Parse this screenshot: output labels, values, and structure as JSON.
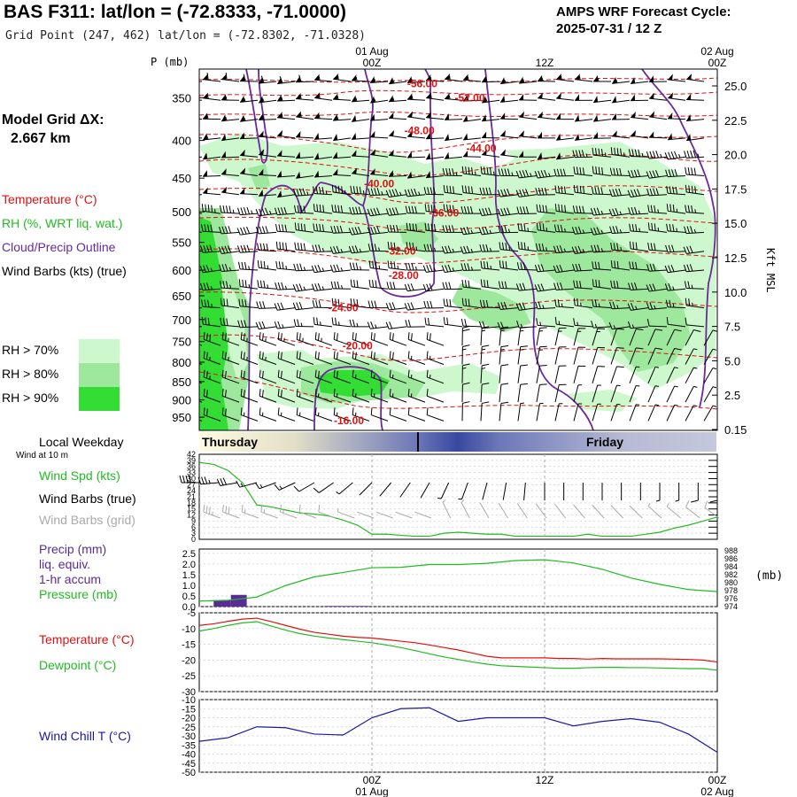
{
  "header": {
    "title": "BAS F311:  lat/lon = (-72.8333, -71.0000)",
    "subtitle": "Grid Point (247, 462) lat/lon = (-72.8302, -71.0328)",
    "cycle_line1": "AMPS WRF Forecast Cycle:",
    "cycle_line2": "2025-07-31 / 12  Z"
  },
  "labels": {
    "p_axis": "P (mb)",
    "model_grid": "Model Grid ΔX:",
    "grid_dx": "2.667 km",
    "temperature": "Temperature (°C)",
    "rh": "RH (%, WRT liq. wat.)",
    "cloud": "Cloud/Precip Outline",
    "wind_barbs": "Wind Barbs (kts) (true)",
    "rh70": "RH > 70%",
    "rh80": "RH > 80%",
    "rh90": "RH > 90%",
    "kft": "Kft MSL",
    "local_weekday": "Local Weekday",
    "wind_10m": "Wind at 10 m",
    "wind_spd": "Wind Spd (kts)",
    "wind_barbs_true": "Wind Barbs (true)",
    "wind_barbs_grid": "Wind Barbs (grid)",
    "precip1": "Precip (mm)",
    "precip2": "liq. equiv.",
    "precip3": "1-hr accum",
    "pressure": "Pressure (mb)",
    "pressure_unit": "(mb)",
    "temp2": "Temperature (°C)",
    "dewpoint": "Dewpoint (°C)",
    "windchill": "Wind Chill T (°C)",
    "day1": "Thursday",
    "day2": "Friday"
  },
  "colors": {
    "temperature": "#e01010",
    "rh": "#22bb22",
    "cloud": "#6a2a9a",
    "grid_barbs": "#aaaaaa",
    "precip": "#5a2a9a",
    "windchill": "#1a1aa0",
    "rh70": "#cdf7cd",
    "rh80": "#9ee89e",
    "rh90": "#33dd33"
  },
  "chart_data": [
    {
      "type": "heatmap",
      "name": "cross-section",
      "y_ticks_mb": [
        350,
        400,
        450,
        500,
        550,
        600,
        650,
        700,
        750,
        800,
        850,
        900,
        950
      ],
      "kft_ticks": [
        "25.0",
        "22.5",
        "20.0",
        "17.5",
        "15.0",
        "12.5",
        "10.0",
        "7.5",
        "5.0",
        "2.5",
        "0.15"
      ],
      "time_ticks_top": [
        {
          "label": "01 Aug",
          "sub": "00Z",
          "hour": 12
        },
        {
          "label": "",
          "sub": "12Z",
          "hour": 24
        },
        {
          "label": "02 Aug",
          "sub": "00Z",
          "hour": 36
        }
      ],
      "x_range_hours": [
        0,
        36
      ],
      "temperature_contour_labels": [
        {
          "text": "-56.00",
          "hour": 15.5,
          "p": 335
        },
        {
          "text": "-52.00",
          "hour": 18.8,
          "p": 350
        },
        {
          "text": "-48.00",
          "hour": 15.3,
          "p": 388
        },
        {
          "text": "-44.00",
          "hour": 19.6,
          "p": 410
        },
        {
          "text": "-40.00",
          "hour": 12.5,
          "p": 458
        },
        {
          "text": "-36.00",
          "hour": 17.0,
          "p": 502
        },
        {
          "text": "-32.00",
          "hour": 14.0,
          "p": 565
        },
        {
          "text": "-28.00",
          "hour": 14.2,
          "p": 610
        },
        {
          "text": "-24.00",
          "hour": 10.0,
          "p": 675
        },
        {
          "text": "-20.00",
          "hour": 11.0,
          "p": 760
        },
        {
          "text": "-16.00",
          "hour": 10.4,
          "p": 960
        }
      ]
    },
    {
      "type": "line",
      "name": "wind-speed",
      "ylabel": "",
      "y_ticks": [
        "42",
        "39",
        "36",
        "33",
        "30",
        "27",
        "24",
        "21",
        "18",
        "15",
        "12",
        "9",
        "6",
        "3",
        "0"
      ],
      "ylim": [
        0,
        42
      ],
      "x_hours": [
        0,
        1,
        2,
        3,
        4,
        5,
        6,
        7,
        8,
        9,
        10,
        11,
        12,
        13,
        14,
        15,
        16,
        17,
        18,
        19,
        20,
        21,
        22,
        23,
        24,
        25,
        26,
        27,
        28,
        29,
        30,
        31,
        32,
        33,
        34,
        35,
        36
      ],
      "values": [
        38,
        37,
        34,
        28,
        17,
        16,
        14.5,
        13,
        12.5,
        11.5,
        9.5,
        7,
        2.5,
        2.5,
        2,
        1.5,
        1.5,
        3,
        3.5,
        3,
        2.5,
        2.5,
        1.5,
        1.5,
        1.5,
        1.5,
        1.5,
        2.5,
        1.5,
        1.5,
        1.5,
        2.5,
        3.5,
        5.5,
        7,
        9,
        11
      ]
    },
    {
      "type": "bar",
      "name": "precip-pressure",
      "y_ticks_left": [
        "2.5",
        "2.0",
        "1.5",
        "1.0",
        "0.5",
        "0.0"
      ],
      "y_ticks_right": [
        "988",
        "986",
        "984",
        "982",
        "980",
        "978",
        "976",
        "974"
      ],
      "precip_mm": [
        {
          "hour_start": 1.0,
          "hour_end": 2.2,
          "value": 0.3
        },
        {
          "hour_start": 2.2,
          "hour_end": 3.3,
          "value": 0.55
        },
        {
          "hour_start": 8.7,
          "hour_end": 11.8,
          "value": 0.03
        }
      ],
      "pressure_hours": [
        0,
        2,
        4,
        6,
        8,
        10,
        12,
        14,
        16,
        18,
        20,
        22,
        24,
        26,
        28,
        30,
        32,
        34,
        36
      ],
      "pressure_mb": [
        975.4,
        975.6,
        976.4,
        979.3,
        981.5,
        982.6,
        983.8,
        983.9,
        984.6,
        984.6,
        984.9,
        985.6,
        985.8,
        985.0,
        983.4,
        981.2,
        979.6,
        978.3,
        977.8
      ]
    },
    {
      "type": "line",
      "name": "temperature-dewpoint",
      "y_ticks": [
        "-5",
        "-10",
        "-15",
        "-20",
        "-25",
        "-30"
      ],
      "ylim": [
        -30,
        -5
      ],
      "x_hours": [
        0,
        1,
        2,
        3,
        4,
        5,
        6,
        7,
        8,
        9,
        10,
        11,
        12,
        13,
        14,
        15,
        16,
        17,
        18,
        19,
        20,
        21,
        22,
        23,
        24,
        25,
        26,
        27,
        28,
        29,
        30,
        31,
        32,
        33,
        34,
        35,
        36
      ],
      "series": [
        {
          "name": "Temperature (°C)",
          "values": [
            -9,
            -8.5,
            -7.7,
            -7,
            -6.7,
            -7.8,
            -9,
            -10.2,
            -11.2,
            -11.8,
            -12.4,
            -12.8,
            -13,
            -13.5,
            -14,
            -14.5,
            -15.2,
            -16,
            -16.8,
            -17.8,
            -18.8,
            -19.3,
            -19.3,
            -19.3,
            -19.3,
            -19.5,
            -19.5,
            -19.7,
            -19.5,
            -19.6,
            -19.6,
            -19.6,
            -19.6,
            -19.7,
            -19.8,
            -20,
            -20.6
          ]
        },
        {
          "name": "Dewpoint (°C)",
          "values": [
            -10.8,
            -10,
            -9,
            -8.2,
            -7.8,
            -9.2,
            -10.5,
            -11.6,
            -12.4,
            -13,
            -13.5,
            -14,
            -14.5,
            -15.2,
            -16,
            -17,
            -18,
            -19,
            -19.8,
            -20.6,
            -21.3,
            -21.8,
            -22,
            -22.2,
            -22.4,
            -22.6,
            -22.6,
            -22.4,
            -22.3,
            -22.3,
            -22.4,
            -22.4,
            -22.5,
            -22.6,
            -22.7,
            -22.7,
            -23.2
          ]
        }
      ]
    },
    {
      "type": "line",
      "name": "wind-chill",
      "y_ticks": [
        "-10",
        "-15",
        "-20",
        "-25",
        "-30",
        "-35",
        "-40",
        "-45",
        "-50"
      ],
      "ylim": [
        -50,
        -10
      ],
      "x_hours": [
        0,
        2,
        4,
        6,
        8,
        10,
        12,
        14,
        16,
        18,
        20,
        22,
        24,
        26,
        28,
        30,
        32,
        34,
        36
      ],
      "values": [
        -33,
        -31,
        -25,
        -25.5,
        -29,
        -29.5,
        -20,
        -15,
        -14.5,
        -22,
        -20,
        -20,
        -20,
        -24.5,
        -22,
        -20.5,
        -22.5,
        -29,
        -39
      ]
    }
  ],
  "bottom_axis": {
    "ticks": [
      {
        "sub": "00Z",
        "label": "01 Aug",
        "hour": 12
      },
      {
        "sub": "12Z",
        "label": "",
        "hour": 24
      },
      {
        "sub": "00Z",
        "label": "02 Aug",
        "hour": 36
      }
    ]
  }
}
